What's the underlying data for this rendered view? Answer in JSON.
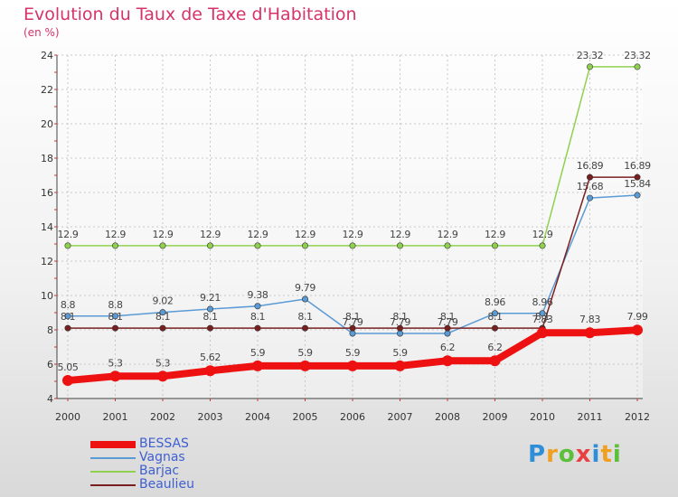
{
  "chart_data": {
    "type": "line",
    "title": "Evolution du Taux de Taxe d'Habitation",
    "subtitle": "(en %)",
    "categories": [
      "2000",
      "2001",
      "2002",
      "2003",
      "2004",
      "2005",
      "2006",
      "2007",
      "2008",
      "2009",
      "2010",
      "2011",
      "2012"
    ],
    "ylim": [
      4,
      24
    ],
    "yticks": [
      "4",
      "6",
      "8",
      "10",
      "12",
      "14",
      "16",
      "18",
      "20",
      "22",
      "24"
    ],
    "grid": true,
    "legend_position": "bottom-left",
    "series": [
      {
        "name": "Barjac",
        "color": "#8fd14f",
        "values": [
          12.9,
          12.9,
          12.9,
          12.9,
          12.9,
          12.9,
          12.9,
          12.9,
          12.9,
          12.9,
          12.9,
          23.32,
          23.32
        ],
        "labels": [
          "12.9",
          "12.9",
          "12.9",
          "12.9",
          "12.9",
          "12.9",
          "12.9",
          "12.9",
          "12.9",
          "12.9",
          "12.9",
          "23.32",
          "23.32"
        ]
      },
      {
        "name": "Vagnas",
        "color": "#5b9bd5",
        "values": [
          8.8,
          8.8,
          9.02,
          9.21,
          9.38,
          9.79,
          7.79,
          7.79,
          7.79,
          8.96,
          8.96,
          15.68,
          15.84
        ],
        "labels": [
          "8.8",
          "8.8",
          "9.02",
          "9.21",
          "9.38",
          "9.79",
          "7.79",
          "7.79",
          "7.79",
          "8.96",
          "8.96",
          "15.68",
          "15.84"
        ]
      },
      {
        "name": "Beaulieu",
        "color": "#7a1f1f",
        "values": [
          8.1,
          8.1,
          8.1,
          8.1,
          8.1,
          8.1,
          8.1,
          8.1,
          8.1,
          8.1,
          8.1,
          16.89,
          16.89
        ],
        "labels": [
          "8.1",
          "8.1",
          "8.1",
          "8.1",
          "8.1",
          "8.1",
          "8.1",
          "8.1",
          "8.1",
          "8.1",
          "8.1",
          "16.89",
          "16.89"
        ]
      },
      {
        "name": "BESSAS",
        "color": "#ee1111",
        "values": [
          5.05,
          5.3,
          5.3,
          5.62,
          5.9,
          5.9,
          5.9,
          5.9,
          6.2,
          6.2,
          7.83,
          7.83,
          7.99
        ],
        "labels": [
          "5.05",
          "5.3",
          "5.3",
          "5.62",
          "5.9",
          "5.9",
          "5.9",
          "5.9",
          "6.2",
          "6.2",
          "7.83",
          "7.83",
          "7.99"
        ]
      }
    ],
    "legend": [
      {
        "name": "BESSAS",
        "color": "#ee1111",
        "thickness": "thick"
      },
      {
        "name": "Vagnas",
        "color": "#5b9bd5",
        "thickness": "thin"
      },
      {
        "name": "Barjac",
        "color": "#8fd14f",
        "thickness": "thin"
      },
      {
        "name": "Beaulieu",
        "color": "#7a1f1f",
        "thickness": "thin"
      }
    ]
  },
  "logo": {
    "letters": [
      "P",
      "r",
      "o",
      "x",
      "i",
      "t",
      "i"
    ],
    "colors": [
      "#2e8fd8",
      "#f0a020",
      "#5bbf3a",
      "#e84040",
      "#2e8fd8",
      "#f0a020",
      "#5bbf3a"
    ]
  }
}
